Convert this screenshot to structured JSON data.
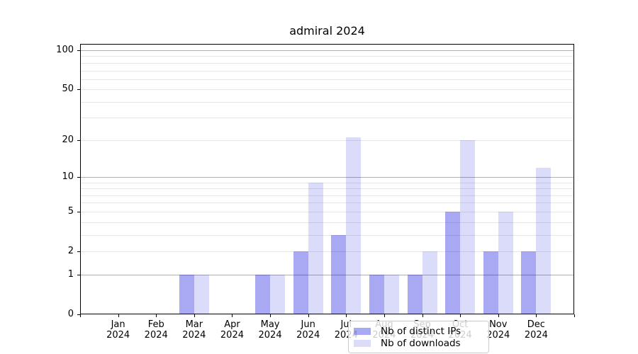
{
  "title": "admiral 2024",
  "chart_data": {
    "type": "bar",
    "title": "admiral 2024",
    "scale": "log1p",
    "ylim": [
      0,
      112
    ],
    "grid": true,
    "legend_position": "lower-center",
    "categories": [
      {
        "month": "Jan",
        "year": "2024"
      },
      {
        "month": "Feb",
        "year": "2024"
      },
      {
        "month": "Mar",
        "year": "2024"
      },
      {
        "month": "Apr",
        "year": "2024"
      },
      {
        "month": "May",
        "year": "2024"
      },
      {
        "month": "Jun",
        "year": "2024"
      },
      {
        "month": "Jul",
        "year": "2024"
      },
      {
        "month": "Aug",
        "year": "2024"
      },
      {
        "month": "Sep",
        "year": "2024"
      },
      {
        "month": "Oct",
        "year": "2024"
      },
      {
        "month": "Nov",
        "year": "2024"
      },
      {
        "month": "Dec",
        "year": "2024"
      }
    ],
    "series": [
      {
        "key": "distinct-ips",
        "name": "Nb of distinct IPs",
        "color": "rgba(0,0,220,0.34)",
        "values": [
          0,
          0,
          1,
          0,
          1,
          2,
          3,
          1,
          1,
          5,
          2,
          2
        ]
      },
      {
        "key": "downloads",
        "name": "Nb of downloads",
        "color": "rgba(0,0,220,0.14)",
        "values": [
          0,
          0,
          1,
          0,
          1,
          9,
          21,
          1,
          2,
          20,
          5,
          12
        ]
      }
    ],
    "yticks": [
      {
        "label": "0",
        "value": 0
      },
      {
        "label": "1",
        "value": 1
      },
      {
        "label": "2",
        "value": 2
      },
      {
        "label": "5",
        "value": 5
      },
      {
        "label": "10",
        "value": 10
      },
      {
        "label": "20",
        "value": 20
      },
      {
        "label": "50",
        "value": 50
      },
      {
        "label": "100",
        "value": 100
      }
    ],
    "major_gridlines": [
      1,
      10,
      100
    ],
    "minor_gridlines": [
      2,
      3,
      4,
      5,
      6,
      7,
      8,
      9,
      20,
      30,
      40,
      50,
      60,
      70,
      80,
      90
    ]
  },
  "colors": {
    "bar_distinct_ips": "rgba(0,0,220,0.34)",
    "bar_downloads": "rgba(0,0,220,0.14)",
    "grid_major": "#b0b0b0",
    "grid_minor": "#e7e7e7",
    "axis": "#000000",
    "legend_border": "#cbcbcb"
  }
}
